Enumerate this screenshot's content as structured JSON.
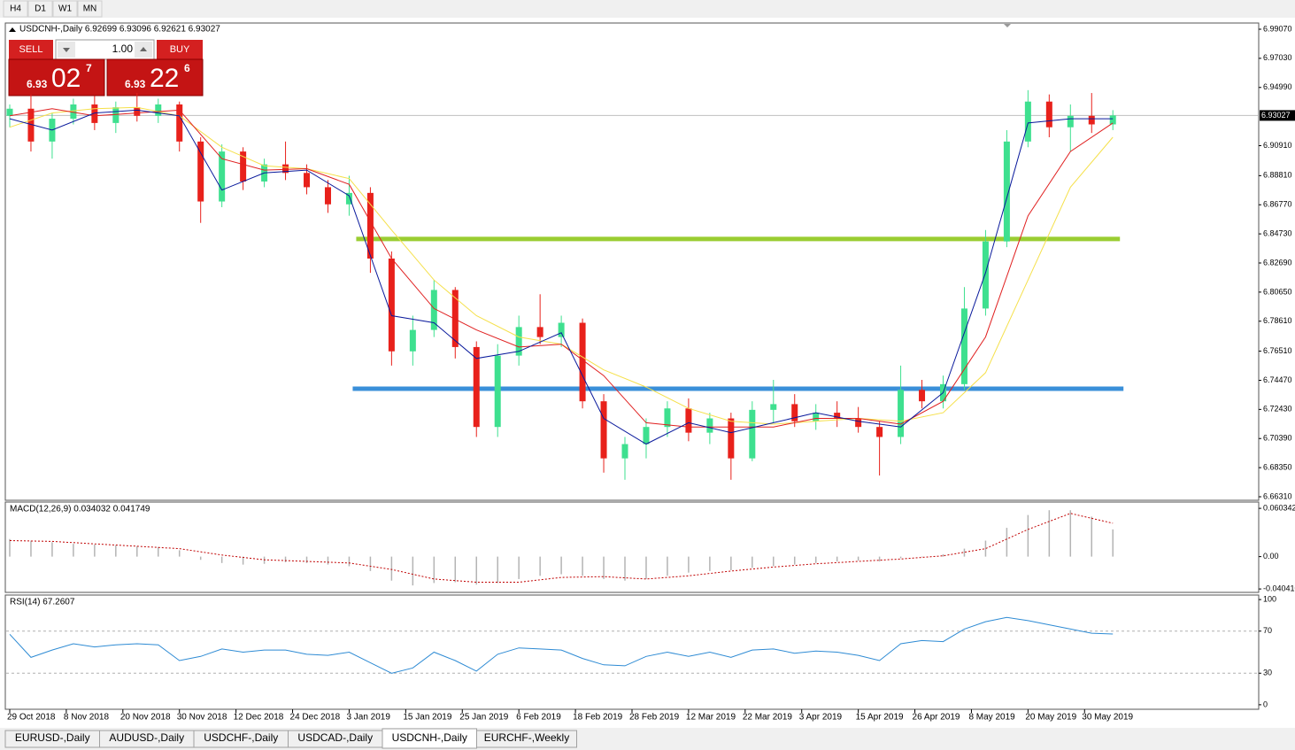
{
  "timeframes": [
    "H4",
    "D1",
    "W1",
    "MN"
  ],
  "trade": {
    "sell": "SELL",
    "buy": "BUY",
    "volume": "1.00",
    "bid": {
      "big": "6.93",
      "main": "02",
      "pip": "7"
    },
    "ask": {
      "big": "6.93",
      "main": "22",
      "pip": "6"
    }
  },
  "tabs": [
    "EURUSD-,Daily",
    "AUDUSD-,Daily",
    "USDCHF-,Daily",
    "USDCAD-,Daily",
    "USDCNH-,Daily",
    "EURCHF-,Weekly"
  ],
  "active_tab": 4,
  "chart_data": [
    {
      "type": "candlestick",
      "title": "USDCNH-,Daily  6.92699 6.93096 6.92621 6.93027",
      "up_color": "#3ee08f",
      "down_color": "#e8211b",
      "x": [
        0,
        3,
        6,
        9,
        12,
        15,
        18,
        21,
        24,
        27,
        30,
        33,
        36,
        39,
        42,
        45,
        48,
        51,
        54,
        57,
        60,
        63,
        66,
        69,
        72,
        75,
        78,
        81,
        84,
        87,
        90,
        93,
        96,
        99,
        102,
        105,
        108,
        111,
        114,
        117,
        120,
        123,
        126,
        129,
        132,
        135,
        138,
        141,
        144,
        147,
        150,
        153,
        156
      ],
      "open": [
        6.93,
        6.935,
        6.912,
        6.928,
        6.938,
        6.925,
        6.936,
        6.93,
        6.938,
        6.912,
        6.87,
        6.905,
        6.884,
        6.896,
        6.89,
        6.88,
        6.868,
        6.876,
        6.83,
        6.765,
        6.78,
        6.808,
        6.768,
        6.712,
        6.762,
        6.782,
        6.775,
        6.785,
        6.73,
        6.69,
        6.7,
        6.712,
        6.725,
        6.708,
        6.718,
        6.69,
        6.724,
        6.728,
        6.716,
        6.722,
        6.718,
        6.712,
        6.705,
        6.738,
        6.73,
        6.742,
        6.795,
        6.842,
        6.912,
        6.94,
        6.922,
        6.93,
        6.924
      ],
      "high": [
        6.938,
        6.945,
        6.932,
        6.942,
        6.944,
        6.94,
        6.946,
        6.942,
        6.94,
        6.915,
        6.91,
        6.908,
        6.9,
        6.912,
        6.896,
        6.885,
        6.888,
        6.88,
        6.835,
        6.79,
        6.815,
        6.81,
        6.772,
        6.77,
        6.79,
        6.805,
        6.79,
        6.788,
        6.735,
        6.705,
        6.718,
        6.73,
        6.732,
        6.722,
        6.722,
        6.73,
        6.745,
        6.735,
        6.728,
        6.73,
        6.726,
        6.716,
        6.755,
        6.745,
        6.748,
        6.81,
        6.85,
        6.92,
        6.948,
        6.945,
        6.938,
        6.946,
        6.934
      ],
      "low": [
        6.922,
        6.905,
        6.9,
        6.924,
        6.92,
        6.918,
        6.926,
        6.925,
        6.905,
        6.855,
        6.866,
        6.878,
        6.88,
        6.885,
        6.875,
        6.862,
        6.86,
        6.82,
        6.755,
        6.755,
        6.775,
        6.76,
        6.705,
        6.705,
        6.755,
        6.77,
        6.768,
        6.725,
        6.68,
        6.675,
        6.69,
        6.705,
        6.702,
        6.7,
        6.675,
        6.688,
        6.715,
        6.712,
        6.71,
        6.712,
        6.708,
        6.678,
        6.7,
        6.725,
        6.725,
        6.738,
        6.79,
        6.838,
        6.908,
        6.915,
        6.905,
        6.918,
        6.92
      ],
      "close": [
        6.935,
        6.912,
        6.928,
        6.938,
        6.925,
        6.936,
        6.93,
        6.938,
        6.912,
        6.87,
        6.905,
        6.884,
        6.896,
        6.89,
        6.88,
        6.868,
        6.876,
        6.83,
        6.765,
        6.78,
        6.808,
        6.768,
        6.712,
        6.762,
        6.782,
        6.775,
        6.785,
        6.73,
        6.69,
        6.7,
        6.712,
        6.725,
        6.708,
        6.718,
        6.69,
        6.724,
        6.728,
        6.716,
        6.722,
        6.718,
        6.712,
        6.705,
        6.738,
        6.73,
        6.742,
        6.795,
        6.842,
        6.912,
        6.94,
        6.922,
        6.93,
        6.924,
        6.93027
      ],
      "overlays": {
        "x": [
          0,
          6,
          12,
          18,
          24,
          30,
          36,
          42,
          48,
          54,
          60,
          66,
          72,
          78,
          84,
          90,
          96,
          102,
          108,
          114,
          120,
          126,
          132,
          138,
          144,
          150,
          156
        ],
        "series": [
          {
            "color": "#f5e04a",
            "values": [
              6.922,
              6.932,
              6.935,
              6.936,
              6.93,
              6.908,
              6.895,
              6.893,
              6.886,
              6.85,
              6.815,
              6.79,
              6.775,
              6.77,
              6.752,
              6.74,
              6.725,
              6.716,
              6.714,
              6.716,
              6.718,
              6.716,
              6.722,
              6.75,
              6.815,
              6.88,
              6.915
            ]
          },
          {
            "color": "#e02020",
            "values": [
              6.93,
              6.935,
              6.93,
              6.932,
              6.934,
              6.9,
              6.892,
              6.893,
              6.882,
              6.83,
              6.795,
              6.78,
              6.768,
              6.77,
              6.748,
              6.715,
              6.712,
              6.712,
              6.712,
              6.718,
              6.718,
              6.714,
              6.73,
              6.775,
              6.86,
              6.905,
              6.925
            ]
          },
          {
            "color": "#0a1a9c",
            "values": [
              6.928,
              6.92,
              6.932,
              6.934,
              6.93,
              6.878,
              6.89,
              6.892,
              6.874,
              6.79,
              6.785,
              6.76,
              6.765,
              6.778,
              6.718,
              6.7,
              6.715,
              6.708,
              6.715,
              6.722,
              6.716,
              6.712,
              6.736,
              6.82,
              6.925,
              6.928,
              6.928
            ]
          }
        ]
      },
      "levels": [
        {
          "value": 6.8437,
          "color": "#9acd32",
          "x": [
            49,
            157
          ]
        },
        {
          "value": 6.7388,
          "color": "#3a8fd9",
          "x": [
            48.5,
            157.5
          ]
        }
      ],
      "current_price": {
        "value": 6.93027,
        "label": "6.93027"
      },
      "xlim": [
        -0.5,
        176.5
      ],
      "ylim": [
        6.66062,
        6.99504
      ],
      "yticks": [
        {
          "value": 6.9907,
          "label": "6.99070"
        },
        {
          "value": 6.9703,
          "label": "6.97030"
        },
        {
          "value": 6.9499,
          "label": "6.94990"
        },
        {
          "value": 6.9091,
          "label": "6.90910"
        },
        {
          "value": 6.8881,
          "label": "6.88810"
        },
        {
          "value": 6.8677,
          "label": "6.86770"
        },
        {
          "value": 6.8473,
          "label": "6.84730"
        },
        {
          "value": 6.8269,
          "label": "6.82690"
        },
        {
          "value": 6.8065,
          "label": "6.80650"
        },
        {
          "value": 6.7861,
          "label": "6.78610"
        },
        {
          "value": 6.7651,
          "label": "6.76510"
        },
        {
          "value": 6.7447,
          "label": "6.74470"
        },
        {
          "value": 6.7243,
          "label": "6.72430"
        },
        {
          "value": 6.7039,
          "label": "6.70390"
        },
        {
          "value": 6.6835,
          "label": "6.68350"
        },
        {
          "value": 6.6631,
          "label": "6.66310"
        }
      ],
      "xticks": [
        {
          "value": 0,
          "label": "29 Oct 2018"
        },
        {
          "value": 8,
          "label": "8 Nov 2018"
        },
        {
          "value": 16,
          "label": "20 Nov 2018"
        },
        {
          "value": 24,
          "label": "30 Nov 2018"
        },
        {
          "value": 32,
          "label": "12 Dec 2018"
        },
        {
          "value": 40,
          "label": "24 Dec 2018"
        },
        {
          "value": 48,
          "label": "3 Jan 2019"
        },
        {
          "value": 56,
          "label": "15 Jan 2019"
        },
        {
          "value": 64,
          "label": "25 Jan 2019"
        },
        {
          "value": 72,
          "label": "6 Feb 2019"
        },
        {
          "value": 80,
          "label": "18 Feb 2019"
        },
        {
          "value": 88,
          "label": "28 Feb 2019"
        },
        {
          "value": 96,
          "label": "12 Mar 2019"
        },
        {
          "value": 104,
          "label": "22 Mar 2019"
        },
        {
          "value": 112,
          "label": "3 Apr 2019"
        },
        {
          "value": 120,
          "label": "15 Apr 2019"
        },
        {
          "value": 128,
          "label": "26 Apr 2019"
        },
        {
          "value": 136,
          "label": "8 May 2019"
        },
        {
          "value": 144,
          "label": "20 May 2019"
        },
        {
          "value": 152,
          "label": "30 May 2019"
        }
      ]
    },
    {
      "type": "macd",
      "title": "MACD(12,26,9) 0.034032 0.041749",
      "color": "#b4b4b4",
      "x": [
        0,
        3,
        6,
        9,
        12,
        15,
        18,
        21,
        24,
        27,
        30,
        33,
        36,
        39,
        42,
        45,
        48,
        51,
        54,
        57,
        60,
        63,
        66,
        69,
        72,
        75,
        78,
        81,
        84,
        87,
        90,
        93,
        96,
        99,
        102,
        105,
        108,
        111,
        114,
        117,
        120,
        123,
        126,
        129,
        132,
        135,
        138,
        141,
        144,
        147,
        150,
        153,
        156
      ],
      "values": [
        0.022,
        0.02,
        0.018,
        0.016,
        0.015,
        0.014,
        0.013,
        0.012,
        0.008,
        -0.004,
        -0.008,
        -0.01,
        -0.009,
        -0.007,
        -0.008,
        -0.01,
        -0.012,
        -0.018,
        -0.03,
        -0.036,
        -0.033,
        -0.032,
        -0.035,
        -0.033,
        -0.028,
        -0.024,
        -0.022,
        -0.024,
        -0.028,
        -0.03,
        -0.028,
        -0.024,
        -0.02,
        -0.018,
        -0.017,
        -0.014,
        -0.012,
        -0.01,
        -0.008,
        -0.006,
        -0.005,
        -0.006,
        -0.002,
        0.0,
        0.003,
        0.01,
        0.02,
        0.036,
        0.052,
        0.058,
        0.058,
        0.05,
        0.034032
      ],
      "signal": {
        "color": "#c00000",
        "x": [
          0,
          6,
          12,
          18,
          24,
          30,
          36,
          42,
          48,
          54,
          60,
          66,
          72,
          78,
          84,
          90,
          96,
          102,
          108,
          114,
          120,
          126,
          132,
          138,
          144,
          150,
          156
        ],
        "values": [
          0.02,
          0.019,
          0.016,
          0.013,
          0.01,
          0.002,
          -0.004,
          -0.006,
          -0.008,
          -0.016,
          -0.028,
          -0.032,
          -0.032,
          -0.026,
          -0.025,
          -0.028,
          -0.024,
          -0.018,
          -0.013,
          -0.009,
          -0.006,
          -0.003,
          0.001,
          0.01,
          0.034,
          0.054,
          0.041749
        ]
      },
      "xlim": [
        -0.5,
        176.5
      ],
      "ylim": [
        -0.0447,
        0.0682
      ],
      "yticks": [
        0.060342,
        {
          "value": 0,
          "label": "0.00"
        },
        {
          "value": -0.04041,
          "label": "-0.040410"
        }
      ]
    },
    {
      "type": "rsi",
      "title": "RSI(14) 67.2607",
      "color": "#2e8bd4",
      "x": [
        0,
        3,
        6,
        9,
        12,
        15,
        18,
        21,
        24,
        27,
        30,
        33,
        36,
        39,
        42,
        45,
        48,
        51,
        54,
        57,
        60,
        63,
        66,
        69,
        72,
        75,
        78,
        81,
        84,
        87,
        90,
        93,
        96,
        99,
        102,
        105,
        108,
        111,
        114,
        117,
        120,
        123,
        126,
        129,
        132,
        135,
        138,
        141,
        144,
        147,
        150,
        153,
        156
      ],
      "values": [
        67,
        45,
        52,
        58,
        55,
        57,
        58,
        57,
        42,
        46,
        53,
        50,
        52,
        52,
        48,
        47,
        50,
        40,
        30,
        35,
        50,
        42,
        32,
        48,
        54,
        53,
        52,
        44,
        38,
        37,
        46,
        50,
        46,
        50,
        45,
        52,
        53,
        49,
        51,
        50,
        47,
        42,
        58,
        61,
        60,
        72,
        79,
        83,
        80,
        76,
        72,
        68,
        67.2607
      ],
      "levels": [
        30,
        70
      ],
      "xlim": [
        -0.5,
        176.5
      ],
      "ylim": [
        -4.3,
        104.3
      ],
      "yticks": [
        0,
        30,
        70,
        100
      ]
    }
  ]
}
